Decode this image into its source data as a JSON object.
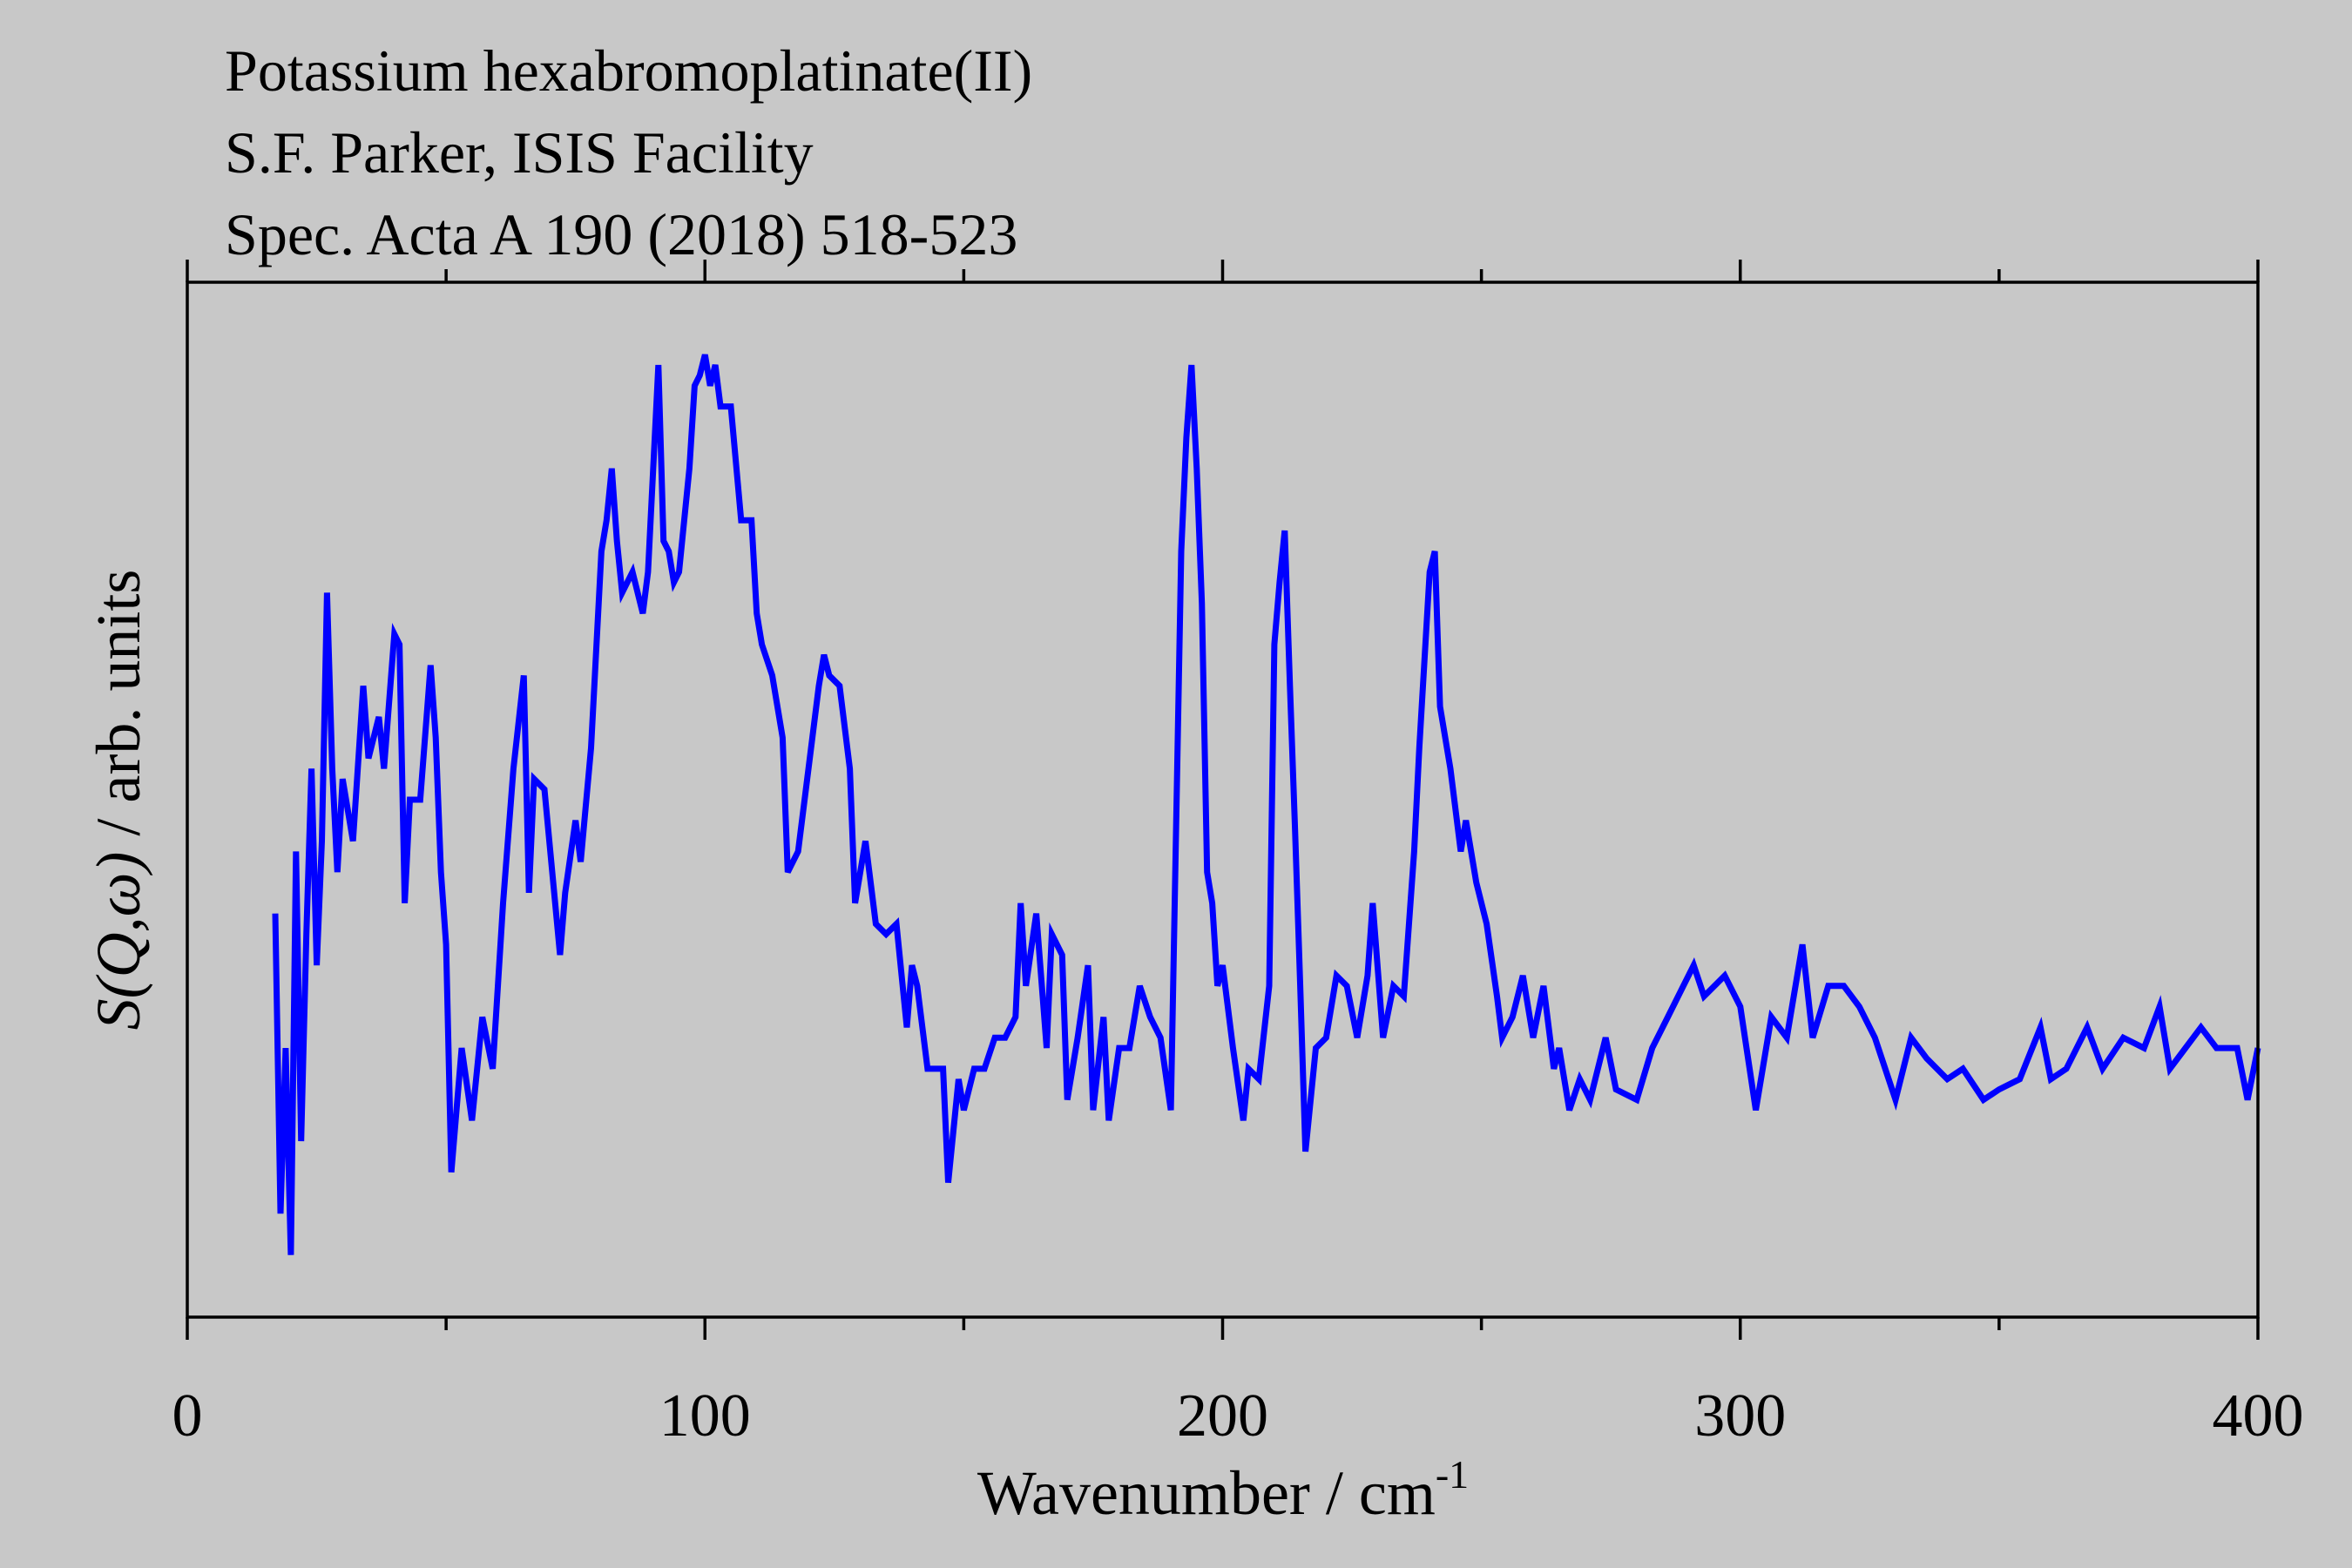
{
  "chart_data": {
    "type": "line",
    "title_lines": [
      "Potassium hexabromoplatinate(II)",
      "S.F. Parker, ISIS Facility",
      "Spec. Acta A 190 (2018) 518-523"
    ],
    "xlabel": {
      "text": "Wavenumber / cm",
      "superscript": "-1"
    },
    "ylabel": {
      "symbol": "S(Q,ω)",
      "units": " / arb. units"
    },
    "xlim": [
      0,
      400
    ],
    "xticks": [
      0,
      100,
      200,
      300,
      400
    ],
    "xminorticks": [
      50,
      150,
      250,
      350
    ],
    "ylim": [
      0,
      100
    ],
    "background": "#c8c8c8",
    "series": [
      {
        "color": "#0000ff",
        "x": [
          17,
          18,
          19,
          20,
          21,
          22,
          23,
          24,
          25,
          26,
          27,
          28,
          29,
          30,
          32,
          34,
          35,
          37,
          38,
          40,
          41,
          42,
          43,
          45,
          47,
          48,
          49,
          50,
          51,
          53,
          55,
          57,
          59,
          61,
          63,
          65,
          66,
          67,
          69,
          72,
          73,
          75,
          76,
          78,
          80,
          81,
          82,
          83,
          84,
          86,
          88,
          89,
          91,
          92,
          93,
          94,
          95,
          97,
          98,
          99,
          100,
          101,
          102,
          103,
          105,
          107,
          109,
          110,
          111,
          113,
          115,
          116,
          118,
          120,
          122,
          123,
          124,
          126,
          128,
          129,
          131,
          133,
          135,
          137,
          139,
          140,
          141,
          143,
          146,
          147,
          149,
          150,
          152,
          154,
          156,
          158,
          160,
          161,
          162,
          164,
          166,
          167,
          169,
          170,
          172,
          174,
          175,
          177,
          178,
          180,
          182,
          184,
          186,
          188,
          190,
          192,
          193,
          194,
          195,
          196,
          197,
          198,
          199,
          200,
          202,
          204,
          205,
          207,
          209,
          210,
          211,
          212,
          213,
          214,
          215,
          216,
          218,
          220,
          222,
          224,
          226,
          228,
          229,
          231,
          233,
          235,
          237,
          238,
          240,
          241,
          242,
          244,
          246,
          247,
          249,
          251,
          253,
          254,
          256,
          258,
          260,
          262,
          264,
          265,
          267,
          269,
          271,
          274,
          276,
          280,
          283,
          286,
          289,
          291,
          293,
          297,
          300,
          303,
          306,
          309,
          312,
          314,
          317,
          320,
          323,
          326,
          330,
          333,
          336,
          340,
          343,
          347,
          350,
          354,
          358,
          360,
          363,
          367,
          370,
          374,
          378,
          381,
          383,
          386,
          389,
          392,
          396,
          398,
          400
        ],
        "values": [
          39,
          10,
          26,
          6,
          45,
          17,
          37,
          53,
          34,
          46,
          70,
          53,
          43,
          52,
          46,
          61,
          54,
          58,
          53,
          66,
          65,
          40,
          50,
          50,
          63,
          56,
          43,
          36,
          14,
          26,
          19,
          29,
          24,
          40,
          53,
          62,
          41,
          52,
          51,
          35,
          41,
          48,
          44,
          55,
          74,
          77,
          82,
          75,
          70,
          72,
          68,
          72,
          92,
          75,
          74,
          71,
          72,
          82,
          90,
          91,
          93,
          90,
          92,
          88,
          88,
          77,
          77,
          68,
          65,
          62,
          56,
          43,
          45,
          53,
          61,
          64,
          62,
          61,
          53,
          40,
          46,
          38,
          37,
          38,
          28,
          34,
          32,
          24,
          24,
          13,
          23,
          20,
          24,
          24,
          27,
          27,
          29,
          40,
          32,
          39,
          26,
          37,
          35,
          21,
          27,
          34,
          20,
          29,
          19,
          26,
          26,
          32,
          29,
          27,
          20,
          74,
          85,
          92,
          82,
          69,
          43,
          40,
          32,
          34,
          26,
          19,
          24,
          23,
          32,
          65,
          71,
          76,
          61,
          47,
          32,
          16,
          26,
          27,
          33,
          32,
          27,
          33,
          40,
          27,
          32,
          31,
          45,
          55,
          72,
          74,
          59,
          53,
          45,
          48,
          42,
          38,
          31,
          27,
          29,
          33,
          27,
          32,
          24,
          26,
          20,
          23,
          21,
          27,
          22,
          21,
          26,
          29,
          32,
          34,
          31,
          33,
          30,
          20,
          29,
          27,
          36,
          27,
          32,
          32,
          30,
          27,
          21,
          27,
          25,
          23,
          24,
          21,
          22,
          23,
          28,
          23,
          24,
          28,
          24,
          27,
          26,
          30,
          24,
          26,
          28,
          26,
          26,
          21,
          26
        ]
      }
    ]
  }
}
